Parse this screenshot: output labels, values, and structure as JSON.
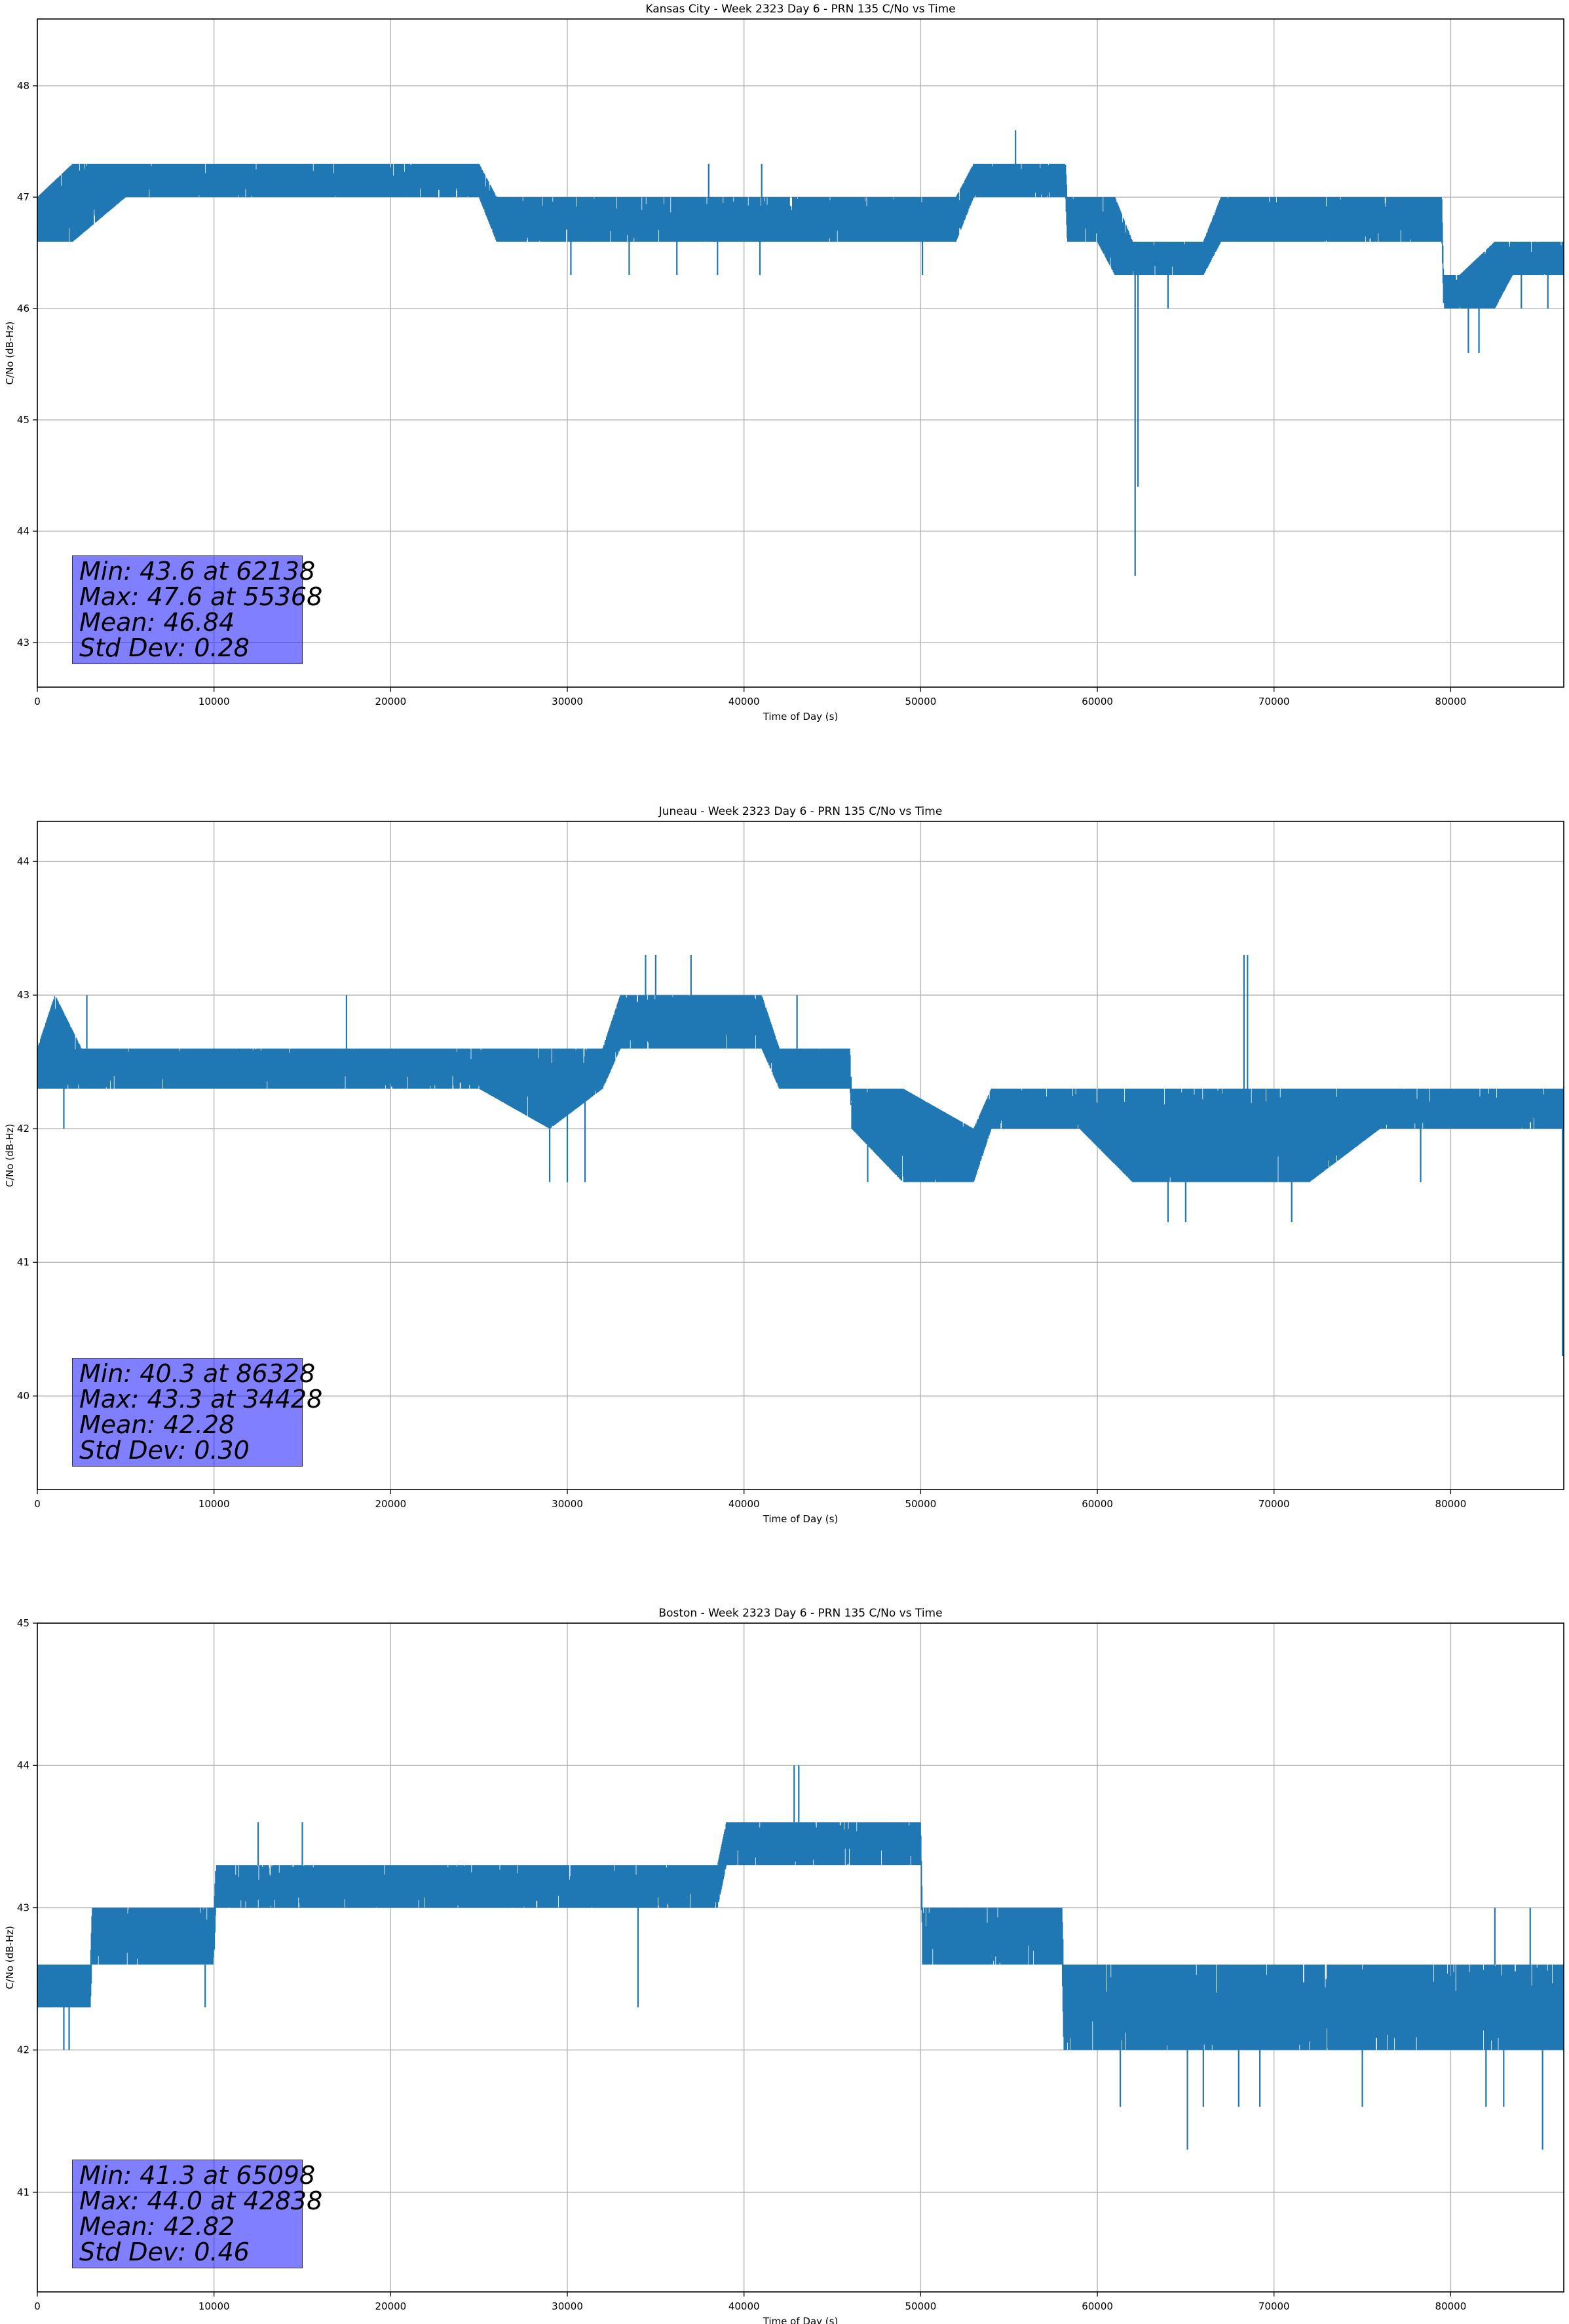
{
  "figure": {
    "background": "#ffffff"
  },
  "chart_data": [
    {
      "type": "line",
      "title": "Kansas City - Week 2323 Day 6 - PRN 135 C/No vs Time",
      "xlabel": "Time of Day (s)",
      "ylabel": "C/No (dB-Hz)",
      "xlim": [
        0,
        86400
      ],
      "ylim": [
        42.6,
        48.6
      ],
      "xticks": [
        0,
        10000,
        20000,
        30000,
        40000,
        50000,
        60000,
        70000,
        80000
      ],
      "yticks": [
        43,
        44,
        45,
        46,
        47,
        48
      ],
      "grid": true,
      "color": "#1f77b4",
      "band": {
        "x": [
          0,
          2000,
          5000,
          10000,
          15000,
          20000,
          25000,
          26000,
          30000,
          35000,
          40000,
          45000,
          50000,
          52000,
          53000,
          56000,
          58200,
          58300,
          60000,
          61000,
          62000,
          63000,
          65000,
          66000,
          67000,
          70000,
          75000,
          79500,
          79600,
          80500,
          82500,
          83500,
          86400
        ],
        "low": [
          46.6,
          46.6,
          47.0,
          47.0,
          47.0,
          47.0,
          47.0,
          46.6,
          46.6,
          46.6,
          46.6,
          46.6,
          46.6,
          46.6,
          47.0,
          47.0,
          47.0,
          46.6,
          46.6,
          46.3,
          46.3,
          46.3,
          46.3,
          46.3,
          46.6,
          46.6,
          46.6,
          46.6,
          46.0,
          46.0,
          46.0,
          46.3,
          46.3
        ],
        "high": [
          47.0,
          47.3,
          47.3,
          47.3,
          47.3,
          47.3,
          47.3,
          47.0,
          47.0,
          47.0,
          47.0,
          47.0,
          47.0,
          47.0,
          47.3,
          47.3,
          47.3,
          47.0,
          47.0,
          47.0,
          46.6,
          46.6,
          46.6,
          46.6,
          47.0,
          47.0,
          47.0,
          47.0,
          46.3,
          46.3,
          46.6,
          46.6,
          46.6
        ]
      },
      "spikes": [
        {
          "x": 55368,
          "y": 47.6
        },
        {
          "x": 62138,
          "y": 43.6
        },
        {
          "x": 62300,
          "y": 44.4
        },
        {
          "x": 30200,
          "y": 46.3
        },
        {
          "x": 33500,
          "y": 46.3
        },
        {
          "x": 36200,
          "y": 46.3
        },
        {
          "x": 38500,
          "y": 46.3
        },
        {
          "x": 40900,
          "y": 46.3
        },
        {
          "x": 50100,
          "y": 46.3
        },
        {
          "x": 64000,
          "y": 46.0
        },
        {
          "x": 38000,
          "y": 47.3
        },
        {
          "x": 41000,
          "y": 47.3
        },
        {
          "x": 81000,
          "y": 45.6
        },
        {
          "x": 81600,
          "y": 45.6
        },
        {
          "x": 84000,
          "y": 46.0
        },
        {
          "x": 85500,
          "y": 46.0
        }
      ],
      "stats": [
        "Min: 43.6 at 62138",
        "Max: 47.6 at 55368",
        "Mean: 46.84",
        "Std Dev: 0.28"
      ]
    },
    {
      "type": "line",
      "title": "Juneau - Week 2323 Day 6 - PRN 135 C/No vs Time",
      "xlabel": "Time of Day (s)",
      "ylabel": "C/No (dB-Hz)",
      "xlim": [
        0,
        86400
      ],
      "ylim": [
        39.3,
        44.3
      ],
      "xticks": [
        0,
        10000,
        20000,
        30000,
        40000,
        50000,
        60000,
        70000,
        80000
      ],
      "yticks": [
        40,
        41,
        42,
        43,
        44
      ],
      "grid": true,
      "color": "#1f77b4",
      "band": {
        "x": [
          0,
          1000,
          2500,
          5000,
          10000,
          15000,
          20000,
          25000,
          29000,
          32000,
          33000,
          37000,
          41000,
          42000,
          46000,
          46100,
          49000,
          53000,
          54000,
          58000,
          59000,
          62000,
          63000,
          66000,
          70000,
          72000,
          76000,
          80000,
          86000,
          86400
        ],
        "low": [
          42.3,
          42.3,
          42.3,
          42.3,
          42.3,
          42.3,
          42.3,
          42.3,
          42.0,
          42.3,
          42.6,
          42.6,
          42.6,
          42.3,
          42.3,
          42.0,
          41.6,
          41.6,
          42.0,
          42.0,
          42.0,
          41.6,
          41.6,
          41.6,
          41.6,
          41.6,
          42.0,
          42.0,
          42.0,
          42.0
        ],
        "high": [
          42.6,
          43.0,
          42.6,
          42.6,
          42.6,
          42.6,
          42.6,
          42.6,
          42.6,
          42.6,
          43.0,
          43.0,
          43.0,
          42.6,
          42.6,
          42.3,
          42.3,
          42.0,
          42.3,
          42.3,
          42.3,
          42.3,
          42.3,
          42.3,
          42.3,
          42.3,
          42.3,
          42.3,
          42.3,
          42.3
        ]
      },
      "spikes": [
        {
          "x": 86328,
          "y": 40.3
        },
        {
          "x": 34428,
          "y": 43.3
        },
        {
          "x": 35000,
          "y": 43.3
        },
        {
          "x": 37000,
          "y": 43.3
        },
        {
          "x": 68300,
          "y": 43.3
        },
        {
          "x": 68500,
          "y": 43.3
        },
        {
          "x": 29000,
          "y": 41.6
        },
        {
          "x": 30000,
          "y": 41.6
        },
        {
          "x": 31000,
          "y": 41.6
        },
        {
          "x": 64000,
          "y": 41.3
        },
        {
          "x": 65000,
          "y": 41.3
        },
        {
          "x": 71000,
          "y": 41.3
        },
        {
          "x": 78300,
          "y": 41.6
        },
        {
          "x": 1500,
          "y": 42.0
        },
        {
          "x": 2800,
          "y": 43.0
        },
        {
          "x": 17500,
          "y": 43.0
        },
        {
          "x": 43000,
          "y": 43.0
        },
        {
          "x": 47000,
          "y": 41.6
        }
      ],
      "stats": [
        "Min: 40.3 at 86328",
        "Max: 43.3 at 34428",
        "Mean: 42.28",
        "Std Dev: 0.30"
      ]
    },
    {
      "type": "line",
      "title": "Boston - Week 2323 Day 6 - PRN 135 C/No vs Time",
      "xlabel": "Time of Day (s)",
      "ylabel": "C/No (dB-Hz)",
      "xlim": [
        0,
        86400
      ],
      "ylim": [
        40.3,
        45.0
      ],
      "xticks": [
        0,
        10000,
        20000,
        30000,
        40000,
        50000,
        60000,
        70000,
        80000
      ],
      "yticks": [
        41,
        42,
        43,
        44,
        45
      ],
      "grid": true,
      "color": "#1f77b4",
      "band": {
        "x": [
          0,
          3000,
          3100,
          9000,
          10000,
          10100,
          15000,
          20000,
          25000,
          30000,
          35000,
          38500,
          39000,
          45000,
          50000,
          50100,
          58000,
          58100,
          62000,
          66000,
          70000,
          75000,
          80000,
          86400
        ],
        "low": [
          42.3,
          42.3,
          42.6,
          42.6,
          42.6,
          43.0,
          43.0,
          43.0,
          43.0,
          43.0,
          43.0,
          43.0,
          43.3,
          43.3,
          43.3,
          42.6,
          42.6,
          42.0,
          42.0,
          42.0,
          42.0,
          42.0,
          42.0,
          42.0
        ],
        "high": [
          42.6,
          42.6,
          43.0,
          43.0,
          43.0,
          43.3,
          43.3,
          43.3,
          43.3,
          43.3,
          43.3,
          43.3,
          43.6,
          43.6,
          43.6,
          43.0,
          43.0,
          42.6,
          42.6,
          42.6,
          42.6,
          42.6,
          42.6,
          42.6
        ]
      },
      "spikes": [
        {
          "x": 65098,
          "y": 41.3
        },
        {
          "x": 42838,
          "y": 44.0
        },
        {
          "x": 43100,
          "y": 44.0
        },
        {
          "x": 85200,
          "y": 41.3
        },
        {
          "x": 84500,
          "y": 43.0
        },
        {
          "x": 82500,
          "y": 43.0
        },
        {
          "x": 1500,
          "y": 42.0
        },
        {
          "x": 1800,
          "y": 42.0
        },
        {
          "x": 34000,
          "y": 42.3
        },
        {
          "x": 61300,
          "y": 41.6
        },
        {
          "x": 66000,
          "y": 41.6
        },
        {
          "x": 68000,
          "y": 41.6
        },
        {
          "x": 69200,
          "y": 41.6
        },
        {
          "x": 75000,
          "y": 41.6
        },
        {
          "x": 82000,
          "y": 41.6
        },
        {
          "x": 83000,
          "y": 41.6
        },
        {
          "x": 9500,
          "y": 42.3
        },
        {
          "x": 12500,
          "y": 43.6
        },
        {
          "x": 15000,
          "y": 43.6
        }
      ],
      "stats": [
        "Min: 41.3 at 65098",
        "Max: 44.0 at 42838",
        "Mean: 42.82",
        "Std Dev: 0.46"
      ]
    }
  ]
}
